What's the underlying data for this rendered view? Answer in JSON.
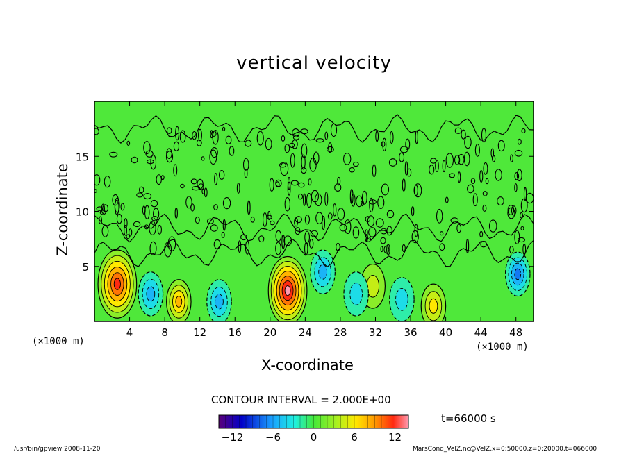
{
  "chart_data": {
    "type": "heatmap",
    "title": "vertical velocity",
    "xlabel": "X-coordinate",
    "ylabel": "Z-coordinate",
    "x_unit": "(×1000 m)",
    "xlim": [
      0,
      50
    ],
    "ylim": [
      0,
      20
    ],
    "x_ticks": [
      4,
      8,
      12,
      16,
      20,
      24,
      28,
      32,
      36,
      40,
      44,
      48
    ],
    "y_ticks": [
      5,
      10,
      15
    ],
    "contour_interval_text": "CONTOUR INTERVAL = 2.000E+00",
    "time_text": "t=66000 s",
    "colorbar": {
      "min": -14,
      "max": 14,
      "tick_values": [
        -12,
        -6,
        0,
        6,
        12
      ],
      "tick_labels": [
        "−12",
        "−6",
        "0",
        "6",
        "12"
      ]
    },
    "features": [
      {
        "x": 2.6,
        "z": 3.4,
        "value": 12
      },
      {
        "x": 9.6,
        "z": 1.8,
        "value": 7
      },
      {
        "x": 22.0,
        "z": 2.8,
        "value": 13
      },
      {
        "x": 38.6,
        "z": 1.4,
        "value": 6
      },
      {
        "x": 31.7,
        "z": 3.2,
        "value": 3
      },
      {
        "x": 14.2,
        "z": 1.8,
        "value": -6
      },
      {
        "x": 6.4,
        "z": 2.5,
        "value": -5
      },
      {
        "x": 26.0,
        "z": 4.5,
        "value": -6
      },
      {
        "x": 29.8,
        "z": 2.5,
        "value": -4
      },
      {
        "x": 35.0,
        "z": 2.0,
        "value": -3
      },
      {
        "x": 48.2,
        "z": 4.3,
        "value": -7
      }
    ]
  },
  "footer": {
    "left": "/usr/bin/gpview   2008-11-20",
    "right": "MarsCond_VelZ.nc@VelZ,x=0:50000,z=0:20000,t=066000"
  },
  "colors": {
    "background_field": "#4fe83a",
    "frame": "#000000"
  }
}
